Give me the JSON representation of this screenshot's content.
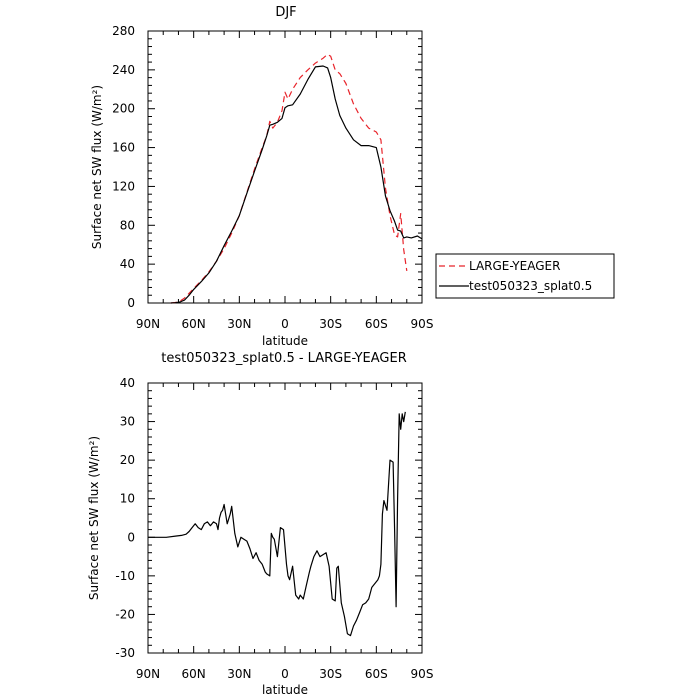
{
  "chart_data": [
    {
      "type": "line",
      "title": "DJF",
      "xlabel": "latitude",
      "ylabel": "Surface net SW flux (W/m²)",
      "xlim": [
        90,
        -90
      ],
      "ylim": [
        0,
        280
      ],
      "x_ticks": [
        90,
        60,
        30,
        0,
        -30,
        -60,
        -90
      ],
      "x_tick_labels": [
        "90N",
        "60N",
        "30N",
        "0",
        "30S",
        "60S",
        "90S"
      ],
      "y_ticks": [
        0,
        40,
        80,
        120,
        160,
        200,
        240,
        280
      ],
      "y_tick_labels": [
        "0",
        "40",
        "80",
        "120",
        "160",
        "200",
        "240",
        "280"
      ],
      "legend_position": "right",
      "series": [
        {
          "name": "LARGE-YEAGER",
          "color": "#e8242b",
          "dash": "dashed",
          "x": [
            75,
            72,
            69,
            66,
            63,
            60,
            55,
            50,
            45,
            40,
            35,
            30,
            25,
            20,
            15,
            12,
            10,
            8,
            5,
            2,
            0,
            -2,
            -5,
            -10,
            -15,
            -20,
            -25,
            -28,
            -30,
            -33,
            -36,
            -40,
            -45,
            -50,
            -55,
            -60,
            -63,
            -66,
            -69,
            -72,
            -74,
            -76,
            -78,
            -80
          ],
          "values": [
            0,
            0.5,
            2,
            5,
            10,
            15,
            23,
            32,
            43,
            56,
            72,
            90,
            114,
            138,
            160,
            172,
            187,
            180,
            186,
            198,
            217,
            210,
            220,
            232,
            240,
            247,
            252,
            256,
            254,
            240,
            236,
            226,
            205,
            190,
            180,
            176,
            168,
            118,
            90,
            70,
            68,
            92,
            55,
            33
          ]
        },
        {
          "name": "test050323_splat0.5",
          "color": "#000000",
          "dash": "solid",
          "x": [
            75,
            72,
            69,
            66,
            63,
            60,
            55,
            50,
            45,
            40,
            35,
            30,
            25,
            20,
            15,
            12,
            10,
            8,
            5,
            2,
            0,
            -2,
            -5,
            -10,
            -15,
            -20,
            -25,
            -28,
            -30,
            -33,
            -36,
            -40,
            -45,
            -50,
            -55,
            -60,
            -63,
            -66,
            -69,
            -72,
            -74,
            -76,
            -78,
            -80,
            -83,
            -87,
            -90
          ],
          "values": [
            0,
            0.3,
            1,
            3,
            8,
            14,
            22,
            31,
            43,
            59,
            74,
            90,
            113,
            136,
            158,
            172,
            183,
            184,
            186,
            190,
            201,
            203,
            204,
            215,
            230,
            243,
            244,
            242,
            232,
            210,
            193,
            180,
            168,
            162,
            162,
            160,
            140,
            110,
            95,
            84,
            75,
            74,
            67,
            68,
            67,
            69,
            66
          ]
        }
      ]
    },
    {
      "type": "line",
      "title": "test050323_splat0.5 - LARGE-YEAGER",
      "xlabel": "latitude",
      "ylabel": "Surface net SW flux (W/m²)",
      "xlim": [
        90,
        -90
      ],
      "ylim": [
        -30,
        40
      ],
      "x_ticks": [
        90,
        60,
        30,
        0,
        -30,
        -60,
        -90
      ],
      "x_tick_labels": [
        "90N",
        "60N",
        "30N",
        "0",
        "30S",
        "60S",
        "90S"
      ],
      "y_ticks": [
        -30,
        -20,
        -10,
        0,
        10,
        20,
        30,
        40
      ],
      "y_tick_labels": [
        "-30",
        "-20",
        "-10",
        "0",
        "10",
        "20",
        "30",
        "40"
      ],
      "series": [
        {
          "name": "",
          "color": "#000000",
          "dash": "solid",
          "x": [
            90,
            84,
            78,
            72,
            68,
            65,
            63,
            61,
            59,
            57,
            55,
            53,
            51,
            49,
            47,
            45,
            44,
            43,
            42,
            41,
            40,
            38,
            36,
            35,
            33,
            31,
            29,
            27,
            25,
            23,
            21,
            19,
            17,
            15,
            14,
            13,
            12,
            10,
            9,
            8,
            7,
            5,
            3,
            1,
            -1,
            -2,
            -3,
            -5,
            -7,
            -9,
            -10,
            -12,
            -14,
            -16,
            -17,
            -19,
            -21,
            -23,
            -25,
            -27,
            -29,
            -31,
            -33,
            -34,
            -35,
            -37,
            -39,
            -41,
            -43,
            -45,
            -47,
            -49,
            -51,
            -53,
            -55,
            -57,
            -59,
            -61,
            -62,
            -63,
            -64,
            -65,
            -67,
            -69,
            -71,
            -72,
            -73,
            -74,
            -75,
            -76,
            -77,
            -78,
            -79
          ],
          "values": [
            0,
            0,
            0,
            0.3,
            0.5,
            0.8,
            1.5,
            2.5,
            3.5,
            2.5,
            2,
            3.5,
            4,
            3,
            4,
            3.5,
            2,
            5,
            6.5,
            7,
            8.5,
            3.5,
            6,
            8,
            1,
            -2.5,
            0,
            -0.5,
            -1,
            -3,
            -5.5,
            -4,
            -6,
            -7,
            -8,
            -9,
            -9.5,
            -10,
            1,
            0,
            -0.5,
            -5,
            2.5,
            2,
            -7,
            -10,
            -11,
            -7.5,
            -15,
            -16,
            -15,
            -16,
            -12.5,
            -9,
            -7.5,
            -5,
            -3.5,
            -5,
            -4.5,
            -4,
            -7.5,
            -16,
            -16.5,
            -8,
            -7.5,
            -17,
            -20.5,
            -25,
            -25.5,
            -23,
            -21.5,
            -19.5,
            -17.5,
            -17,
            -16,
            -13,
            -12,
            -11,
            -10,
            -7,
            6,
            9.5,
            7,
            20,
            19.5,
            2,
            -18,
            10,
            32,
            28,
            32,
            30,
            32.5
          ]
        }
      ]
    }
  ]
}
